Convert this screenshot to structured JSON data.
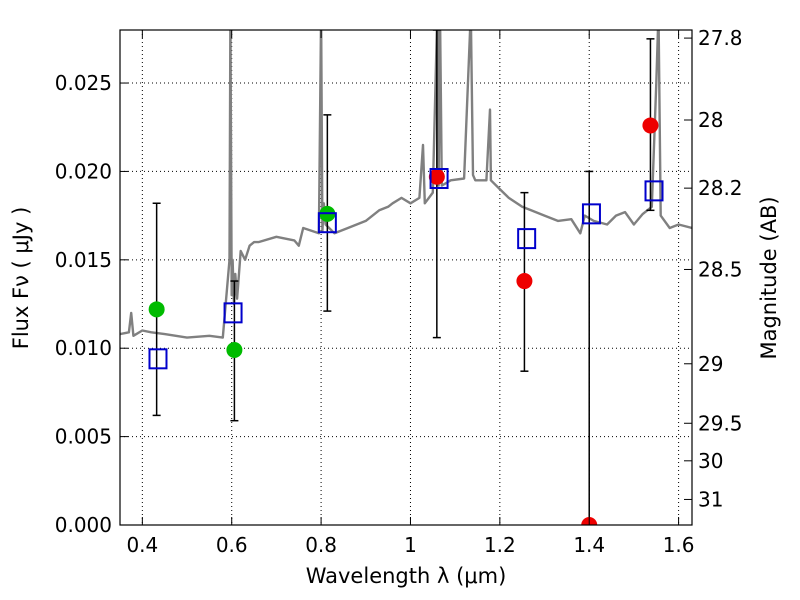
{
  "chart_data": {
    "type": "scatter",
    "xlabel": "Wavelength  λ (μm)",
    "ylabel": "Flux  Fν  ( μJy )",
    "y2label": "Magnitude (AB)",
    "xlim": [
      0.35,
      1.63
    ],
    "ylim": [
      0.0,
      0.028
    ],
    "grid": true,
    "grid_style": "dotted",
    "x_ticks": [
      0.4,
      0.6,
      0.8,
      1.0,
      1.2,
      1.4,
      1.6
    ],
    "x_tick_labels": [
      "0.4",
      "0.6",
      "0.8",
      "1",
      "1.2",
      "1.4",
      "1.6"
    ],
    "y_ticks": [
      0.0,
      0.005,
      0.01,
      0.015,
      0.02,
      0.025
    ],
    "y_tick_labels": [
      "0.000",
      "0.005",
      "0.010",
      "0.015",
      "0.020",
      "0.025"
    ],
    "y2_ticks": [
      27.8,
      28.0,
      28.2,
      28.5,
      29.0,
      29.5,
      30.0,
      31.0
    ],
    "y2_tick_labels": [
      "27.8",
      "28",
      "28.2",
      "28.5",
      "29",
      "29.5",
      "30",
      "31"
    ],
    "colors": {
      "spectrum": "#808080",
      "model_box": "#0000cc",
      "green_point": "#00bb00",
      "red_point": "#ee0000",
      "errorbar": "#000000",
      "grid": "#000000"
    },
    "series": [
      {
        "kind": "observed-green",
        "x": [
          0.432,
          0.606,
          0.814
        ],
        "y": [
          0.0122,
          0.0099,
          0.0176
        ],
        "yerr_low": [
          0.0062,
          0.0059,
          0.0121
        ],
        "yerr_high": [
          0.0182,
          0.0138,
          0.0232
        ]
      },
      {
        "kind": "observed-red",
        "x": [
          1.059,
          1.255,
          1.4,
          1.537
        ],
        "y": [
          0.0197,
          0.0138,
          0.0,
          0.0226
        ],
        "yerr_low": [
          0.0106,
          0.0087,
          0.0,
          0.0178
        ],
        "yerr_high": [
          0.028,
          0.0188,
          0.02,
          0.0275
        ]
      },
      {
        "kind": "model-boxes",
        "x": [
          0.435,
          0.603,
          0.814,
          1.064,
          1.26,
          1.405,
          1.545
        ],
        "y": [
          0.0094,
          0.012,
          0.0171,
          0.0196,
          0.0162,
          0.0176,
          0.0189
        ]
      },
      {
        "kind": "spectrum",
        "x": [
          0.35,
          0.37,
          0.375,
          0.38,
          0.4,
          0.42,
          0.45,
          0.5,
          0.55,
          0.58,
          0.595,
          0.597,
          0.6,
          0.602,
          0.605,
          0.608,
          0.612,
          0.62,
          0.63,
          0.64,
          0.65,
          0.66,
          0.7,
          0.74,
          0.75,
          0.76,
          0.795,
          0.8,
          0.803,
          0.806,
          0.81,
          0.83,
          0.86,
          0.9,
          0.93,
          0.95,
          0.96,
          0.98,
          1.0,
          1.02,
          1.028,
          1.032,
          1.05,
          1.06,
          1.063,
          1.066,
          1.07,
          1.09,
          1.12,
          1.135,
          1.14,
          1.145,
          1.17,
          1.178,
          1.18,
          1.2,
          1.22,
          1.25,
          1.27,
          1.3,
          1.33,
          1.36,
          1.38,
          1.39,
          1.41,
          1.44,
          1.46,
          1.48,
          1.5,
          1.52,
          1.54,
          1.55,
          1.555,
          1.56,
          1.58,
          1.6,
          1.63
        ],
        "y": [
          0.0108,
          0.0109,
          0.012,
          0.0107,
          0.011,
          0.0109,
          0.0108,
          0.0106,
          0.0107,
          0.0106,
          0.015,
          0.029,
          0.013,
          0.015,
          0.0125,
          0.0142,
          0.0128,
          0.0155,
          0.015,
          0.0158,
          0.016,
          0.016,
          0.0163,
          0.0161,
          0.0158,
          0.0168,
          0.0165,
          0.029,
          0.0166,
          0.0182,
          0.017,
          0.0165,
          0.0168,
          0.0172,
          0.0178,
          0.018,
          0.0182,
          0.0185,
          0.0182,
          0.0185,
          0.0215,
          0.0182,
          0.0188,
          0.029,
          0.0192,
          0.029,
          0.0192,
          0.0195,
          0.0196,
          0.029,
          0.0198,
          0.0195,
          0.0195,
          0.0235,
          0.0195,
          0.019,
          0.0185,
          0.018,
          0.0178,
          0.0175,
          0.0172,
          0.0173,
          0.0165,
          0.0175,
          0.0172,
          0.017,
          0.0175,
          0.0177,
          0.017,
          0.0176,
          0.018,
          0.025,
          0.029,
          0.0175,
          0.0168,
          0.017,
          0.0168
        ]
      }
    ]
  }
}
